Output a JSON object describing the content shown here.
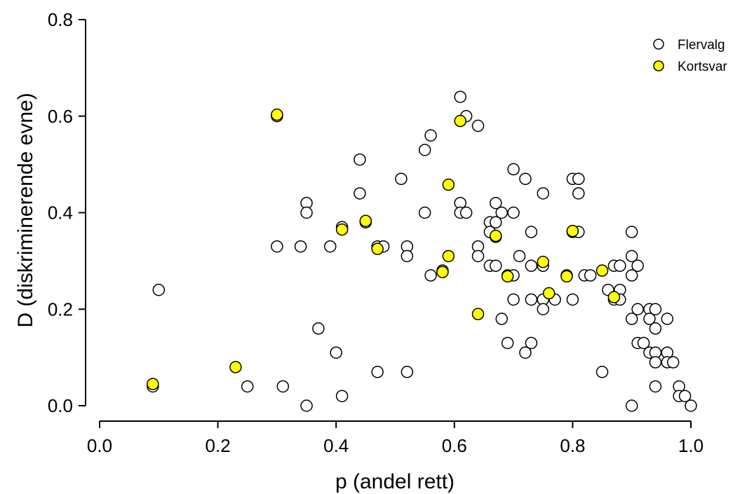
{
  "chart_data": {
    "type": "scatter",
    "xlabel": "p (andel rett)",
    "ylabel": "D (diskriminerende evne)",
    "xlim": [
      0.0,
      1.0
    ],
    "ylim": [
      0.0,
      0.8
    ],
    "x_ticks": [
      "0.0",
      "0.2",
      "0.4",
      "0.6",
      "0.8",
      "1.0"
    ],
    "y_ticks": [
      "0.0",
      "0.2",
      "0.4",
      "0.6",
      "0.8"
    ],
    "grid": false,
    "legend_position": "top-right",
    "series": [
      {
        "name": "Flervalg",
        "fill": "#ffffff",
        "points": [
          [
            0.09,
            0.04
          ],
          [
            0.1,
            0.24
          ],
          [
            0.25,
            0.04
          ],
          [
            0.3,
            0.6
          ],
          [
            0.3,
            0.33
          ],
          [
            0.31,
            0.04
          ],
          [
            0.34,
            0.33
          ],
          [
            0.35,
            0.42
          ],
          [
            0.35,
            0.4
          ],
          [
            0.35,
            0.0
          ],
          [
            0.37,
            0.16
          ],
          [
            0.39,
            0.33
          ],
          [
            0.4,
            0.11
          ],
          [
            0.41,
            0.37
          ],
          [
            0.41,
            0.02
          ],
          [
            0.44,
            0.51
          ],
          [
            0.44,
            0.44
          ],
          [
            0.45,
            0.38
          ],
          [
            0.47,
            0.33
          ],
          [
            0.47,
            0.07
          ],
          [
            0.48,
            0.33
          ],
          [
            0.51,
            0.47
          ],
          [
            0.52,
            0.33
          ],
          [
            0.52,
            0.31
          ],
          [
            0.52,
            0.07
          ],
          [
            0.55,
            0.53
          ],
          [
            0.55,
            0.4
          ],
          [
            0.56,
            0.56
          ],
          [
            0.56,
            0.27
          ],
          [
            0.58,
            0.28
          ],
          [
            0.61,
            0.64
          ],
          [
            0.61,
            0.42
          ],
          [
            0.61,
            0.4
          ],
          [
            0.62,
            0.6
          ],
          [
            0.62,
            0.4
          ],
          [
            0.64,
            0.58
          ],
          [
            0.64,
            0.33
          ],
          [
            0.64,
            0.31
          ],
          [
            0.66,
            0.38
          ],
          [
            0.66,
            0.36
          ],
          [
            0.66,
            0.29
          ],
          [
            0.67,
            0.42
          ],
          [
            0.67,
            0.38
          ],
          [
            0.67,
            0.35
          ],
          [
            0.67,
            0.29
          ],
          [
            0.68,
            0.4
          ],
          [
            0.68,
            0.18
          ],
          [
            0.69,
            0.27
          ],
          [
            0.69,
            0.13
          ],
          [
            0.7,
            0.49
          ],
          [
            0.7,
            0.4
          ],
          [
            0.7,
            0.27
          ],
          [
            0.7,
            0.22
          ],
          [
            0.71,
            0.31
          ],
          [
            0.72,
            0.47
          ],
          [
            0.72,
            0.11
          ],
          [
            0.73,
            0.36
          ],
          [
            0.73,
            0.29
          ],
          [
            0.73,
            0.22
          ],
          [
            0.73,
            0.13
          ],
          [
            0.75,
            0.44
          ],
          [
            0.75,
            0.29
          ],
          [
            0.75,
            0.22
          ],
          [
            0.75,
            0.2
          ],
          [
            0.77,
            0.22
          ],
          [
            0.79,
            0.27
          ],
          [
            0.8,
            0.47
          ],
          [
            0.8,
            0.36
          ],
          [
            0.8,
            0.22
          ],
          [
            0.81,
            0.47
          ],
          [
            0.81,
            0.44
          ],
          [
            0.81,
            0.36
          ],
          [
            0.82,
            0.27
          ],
          [
            0.83,
            0.27
          ],
          [
            0.85,
            0.07
          ],
          [
            0.86,
            0.24
          ],
          [
            0.87,
            0.29
          ],
          [
            0.87,
            0.22
          ],
          [
            0.88,
            0.29
          ],
          [
            0.88,
            0.24
          ],
          [
            0.88,
            0.22
          ],
          [
            0.9,
            0.36
          ],
          [
            0.9,
            0.31
          ],
          [
            0.9,
            0.27
          ],
          [
            0.9,
            0.18
          ],
          [
            0.9,
            0.0
          ],
          [
            0.91,
            0.29
          ],
          [
            0.91,
            0.2
          ],
          [
            0.91,
            0.13
          ],
          [
            0.92,
            0.13
          ],
          [
            0.93,
            0.2
          ],
          [
            0.93,
            0.18
          ],
          [
            0.93,
            0.11
          ],
          [
            0.94,
            0.2
          ],
          [
            0.94,
            0.16
          ],
          [
            0.94,
            0.11
          ],
          [
            0.94,
            0.09
          ],
          [
            0.94,
            0.04
          ],
          [
            0.96,
            0.18
          ],
          [
            0.96,
            0.11
          ],
          [
            0.96,
            0.09
          ],
          [
            0.97,
            0.09
          ],
          [
            0.98,
            0.04
          ],
          [
            0.98,
            0.02
          ],
          [
            0.99,
            0.02
          ],
          [
            1.0,
            0.0
          ]
        ]
      },
      {
        "name": "Kortsvar",
        "fill": "#ffff00",
        "points": [
          [
            0.09,
            0.045
          ],
          [
            0.23,
            0.08
          ],
          [
            0.3,
            0.603
          ],
          [
            0.41,
            0.365
          ],
          [
            0.45,
            0.383
          ],
          [
            0.47,
            0.325
          ],
          [
            0.58,
            0.277
          ],
          [
            0.59,
            0.458
          ],
          [
            0.59,
            0.31
          ],
          [
            0.61,
            0.59
          ],
          [
            0.64,
            0.19
          ],
          [
            0.67,
            0.352
          ],
          [
            0.69,
            0.268
          ],
          [
            0.75,
            0.298
          ],
          [
            0.76,
            0.233
          ],
          [
            0.79,
            0.268
          ],
          [
            0.8,
            0.362
          ],
          [
            0.85,
            0.28
          ],
          [
            0.87,
            0.225
          ]
        ]
      }
    ]
  }
}
